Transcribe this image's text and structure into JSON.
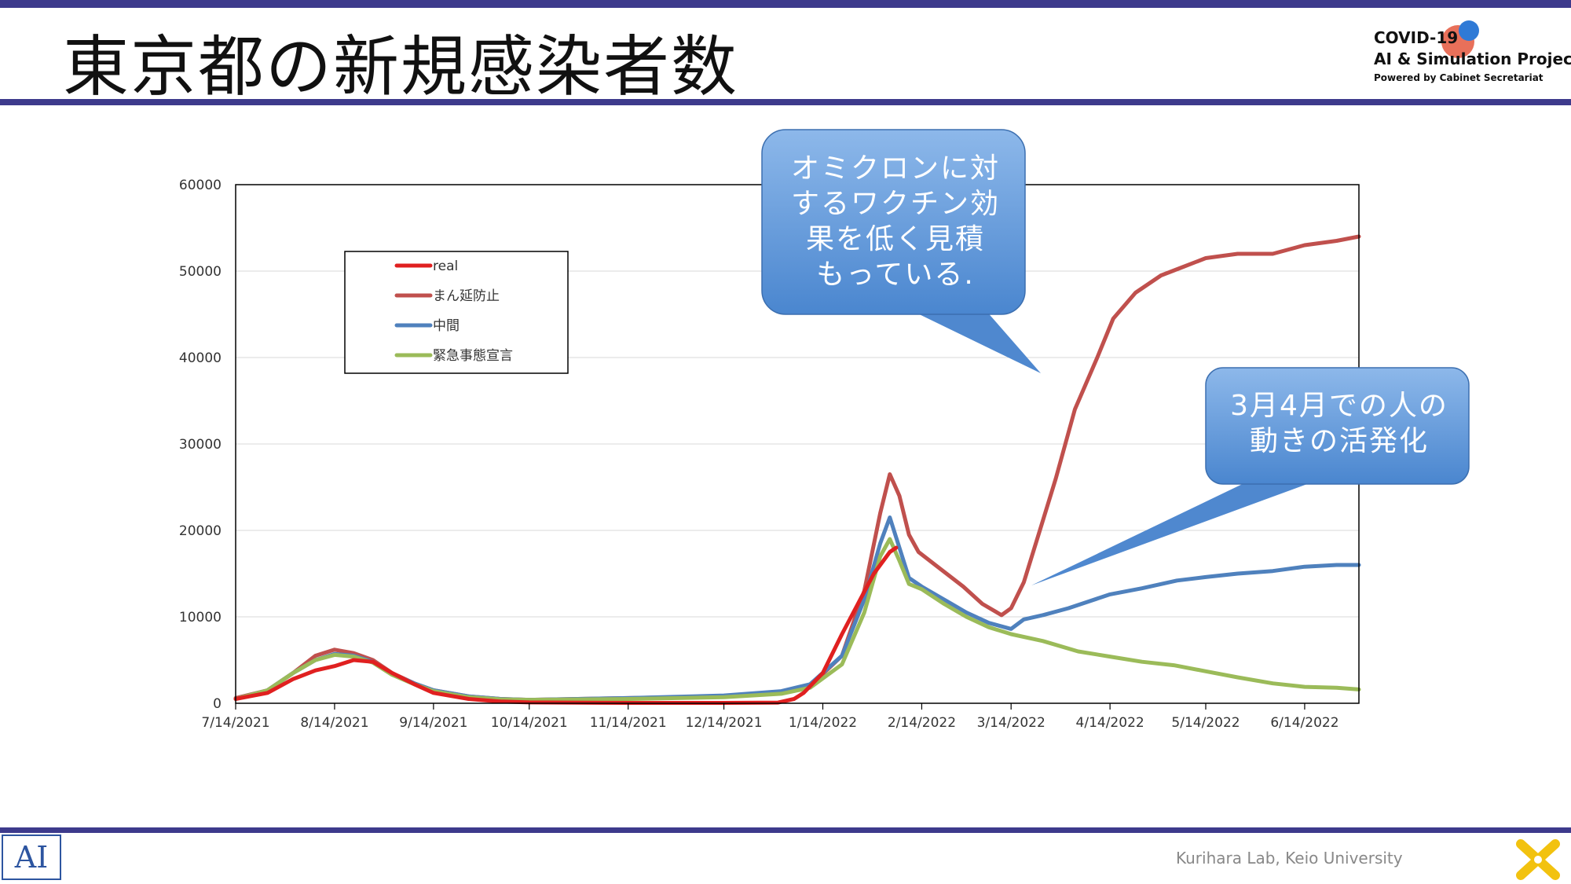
{
  "slide": {
    "title": "東京都の新規感染者数"
  },
  "logo": {
    "line1": "COVID-19",
    "line2": "AI & Simulation Project",
    "line3": "Powered by Cabinet Secretariat"
  },
  "footer": {
    "credit": "Kurihara Lab, Keio University",
    "ai_logo_text": "AI"
  },
  "callouts": {
    "vaccine": "オミクロンに対\nするワクチン効\n果を低く見積\nもっている.",
    "mobility": "3月4月での人の\n動きの活発化"
  },
  "colors": {
    "accent_bar": "#3d3a8c",
    "callout_fill": "#5b94d6",
    "real": "#e02020",
    "manen": "#c0504d",
    "chukan": "#4f81bd",
    "kinkyu": "#9bbb59"
  },
  "chart_data": {
    "type": "line",
    "title": "",
    "xlabel": "",
    "ylabel": "",
    "ylim": [
      0,
      60000
    ],
    "yticks": [
      0,
      10000,
      20000,
      30000,
      40000,
      50000,
      60000
    ],
    "xticks": [
      "7/14/2021",
      "8/14/2021",
      "9/14/2021",
      "10/14/2021",
      "11/14/2021",
      "12/14/2021",
      "1/14/2022",
      "2/14/2022",
      "3/14/2022",
      "4/14/2022",
      "5/14/2022",
      "6/14/2022"
    ],
    "xlim": [
      "7/14/2021",
      "7/1/2022"
    ],
    "grid": true,
    "legend": "top-left",
    "series": [
      {
        "name": "real",
        "color": "#e02020",
        "points": [
          [
            "7/14/2021",
            500
          ],
          [
            "7/24/2021",
            1200
          ],
          [
            "8/1/2021",
            2800
          ],
          [
            "8/8/2021",
            3800
          ],
          [
            "8/14/2021",
            4300
          ],
          [
            "8/20/2021",
            5000
          ],
          [
            "8/26/2021",
            4800
          ],
          [
            "9/1/2021",
            3500
          ],
          [
            "9/8/2021",
            2200
          ],
          [
            "9/14/2021",
            1200
          ],
          [
            "9/25/2021",
            500
          ],
          [
            "10/5/2021",
            200
          ],
          [
            "10/14/2021",
            100
          ],
          [
            "11/14/2021",
            50
          ],
          [
            "12/14/2021",
            50
          ],
          [
            "12/31/2021",
            80
          ],
          [
            "1/5/2022",
            500
          ],
          [
            "1/8/2022",
            1200
          ],
          [
            "1/14/2022",
            3500
          ],
          [
            "1/20/2022",
            8000
          ],
          [
            "1/25/2022",
            11500
          ],
          [
            "1/30/2022",
            15000
          ],
          [
            "2/4/2022",
            17500
          ],
          [
            "2/6/2022",
            18000
          ]
        ]
      },
      {
        "name": "まん延防止",
        "color": "#c0504d",
        "points": [
          [
            "7/14/2021",
            600
          ],
          [
            "7/24/2021",
            1500
          ],
          [
            "8/1/2021",
            3500
          ],
          [
            "8/8/2021",
            5500
          ],
          [
            "8/14/2021",
            6200
          ],
          [
            "8/20/2021",
            5800
          ],
          [
            "8/26/2021",
            5000
          ],
          [
            "9/1/2021",
            3500
          ],
          [
            "9/8/2021",
            2300
          ],
          [
            "9/14/2021",
            1500
          ],
          [
            "9/25/2021",
            800
          ],
          [
            "10/5/2021",
            500
          ],
          [
            "10/14/2021",
            400
          ],
          [
            "11/14/2021",
            600
          ],
          [
            "12/14/2021",
            800
          ],
          [
            "1/1/2022",
            1200
          ],
          [
            "1/10/2022",
            2000
          ],
          [
            "1/20/2022",
            5500
          ],
          [
            "1/27/2022",
            13000
          ],
          [
            "2/1/2022",
            22000
          ],
          [
            "2/4/2022",
            26500
          ],
          [
            "2/7/2022",
            24000
          ],
          [
            "2/10/2022",
            19500
          ],
          [
            "2/13/2022",
            17500
          ],
          [
            "2/20/2022",
            15500
          ],
          [
            "2/27/2022",
            13500
          ],
          [
            "3/5/2022",
            11500
          ],
          [
            "3/11/2022",
            10200
          ],
          [
            "3/14/2022",
            11000
          ],
          [
            "3/18/2022",
            14000
          ],
          [
            "3/23/2022",
            20000
          ],
          [
            "3/28/2022",
            26000
          ],
          [
            "4/3/2022",
            34000
          ],
          [
            "4/10/2022",
            40000
          ],
          [
            "4/15/2022",
            44500
          ],
          [
            "4/22/2022",
            47500
          ],
          [
            "4/30/2022",
            49500
          ],
          [
            "5/7/2022",
            50500
          ],
          [
            "5/14/2022",
            51500
          ],
          [
            "5/24/2022",
            52000
          ],
          [
            "6/4/2022",
            52000
          ],
          [
            "6/14/2022",
            53000
          ],
          [
            "6/24/2022",
            53500
          ],
          [
            "7/1/2022",
            54000
          ]
        ]
      },
      {
        "name": "中間",
        "color": "#4f81bd",
        "points": [
          [
            "7/14/2021",
            500
          ],
          [
            "7/24/2021",
            1500
          ],
          [
            "8/1/2021",
            3500
          ],
          [
            "8/8/2021",
            5000
          ],
          [
            "8/14/2021",
            5700
          ],
          [
            "8/20/2021",
            5500
          ],
          [
            "8/26/2021",
            4800
          ],
          [
            "9/1/2021",
            3400
          ],
          [
            "9/8/2021",
            2300
          ],
          [
            "9/14/2021",
            1500
          ],
          [
            "9/25/2021",
            800
          ],
          [
            "10/5/2021",
            500
          ],
          [
            "10/14/2021",
            400
          ],
          [
            "11/14/2021",
            600
          ],
          [
            "12/14/2021",
            900
          ],
          [
            "1/1/2022",
            1400
          ],
          [
            "1/10/2022",
            2200
          ],
          [
            "1/20/2022",
            5500
          ],
          [
            "1/27/2022",
            12000
          ],
          [
            "2/1/2022",
            18500
          ],
          [
            "2/4/2022",
            21500
          ],
          [
            "2/7/2022",
            18000
          ],
          [
            "2/10/2022",
            14500
          ],
          [
            "2/14/2022",
            13500
          ],
          [
            "2/21/2022",
            12000
          ],
          [
            "2/28/2022",
            10500
          ],
          [
            "3/7/2022",
            9300
          ],
          [
            "3/14/2022",
            8600
          ],
          [
            "3/18/2022",
            9700
          ],
          [
            "3/24/2022",
            10200
          ],
          [
            "4/1/2022",
            11000
          ],
          [
            "4/14/2022",
            12600
          ],
          [
            "4/24/2022",
            13300
          ],
          [
            "5/5/2022",
            14200
          ],
          [
            "5/14/2022",
            14600
          ],
          [
            "5/24/2022",
            15000
          ],
          [
            "6/4/2022",
            15300
          ],
          [
            "6/14/2022",
            15800
          ],
          [
            "6/24/2022",
            16000
          ],
          [
            "7/1/2022",
            16000
          ]
        ]
      },
      {
        "name": "緊急事態宣言",
        "color": "#9bbb59",
        "points": [
          [
            "7/14/2021",
            500
          ],
          [
            "7/24/2021",
            1500
          ],
          [
            "8/1/2021",
            3500
          ],
          [
            "8/8/2021",
            5000
          ],
          [
            "8/14/2021",
            5600
          ],
          [
            "8/20/2021",
            5400
          ],
          [
            "8/26/2021",
            4700
          ],
          [
            "9/1/2021",
            3300
          ],
          [
            "9/8/2021",
            2200
          ],
          [
            "9/14/2021",
            1400
          ],
          [
            "9/25/2021",
            700
          ],
          [
            "10/5/2021",
            450
          ],
          [
            "10/14/2021",
            400
          ],
          [
            "11/14/2021",
            500
          ],
          [
            "12/14/2021",
            700
          ],
          [
            "1/1/2022",
            1100
          ],
          [
            "1/10/2022",
            1800
          ],
          [
            "1/20/2022",
            4500
          ],
          [
            "1/27/2022",
            10500
          ],
          [
            "2/1/2022",
            17000
          ],
          [
            "2/4/2022",
            19000
          ],
          [
            "2/7/2022",
            16500
          ],
          [
            "2/10/2022",
            13800
          ],
          [
            "2/14/2022",
            13200
          ],
          [
            "2/21/2022",
            11500
          ],
          [
            "2/28/2022",
            10000
          ],
          [
            "3/7/2022",
            8800
          ],
          [
            "3/14/2022",
            8000
          ],
          [
            "3/24/2022",
            7200
          ],
          [
            "4/4/2022",
            6000
          ],
          [
            "4/14/2022",
            5400
          ],
          [
            "4/24/2022",
            4800
          ],
          [
            "5/4/2022",
            4400
          ],
          [
            "5/14/2022",
            3700
          ],
          [
            "5/24/2022",
            3000
          ],
          [
            "6/4/2022",
            2300
          ],
          [
            "6/14/2022",
            1900
          ],
          [
            "6/24/2022",
            1800
          ],
          [
            "7/1/2022",
            1600
          ]
        ]
      }
    ]
  }
}
